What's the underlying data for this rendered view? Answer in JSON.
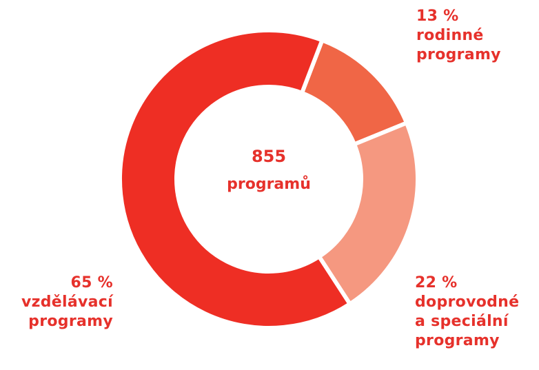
{
  "chart_data": {
    "type": "pie",
    "style": "donut",
    "center_value": "855",
    "center_label": "programů",
    "colors": {
      "vzdelavaci": "#ee2e24",
      "rodinne": "#f06646",
      "doprovodne": "#f59880",
      "label_text": "#e6312b"
    },
    "slices": [
      {
        "key": "vzdelavaci",
        "value": 65,
        "percent_label": "65 %",
        "label_lines": [
          "vzdělávací",
          "programy"
        ],
        "color": "#ee2e24"
      },
      {
        "key": "rodinne",
        "value": 13,
        "percent_label": "13 %",
        "label_lines": [
          "rodinné",
          "programy"
        ],
        "color": "#f06646"
      },
      {
        "key": "doprovodne",
        "value": 22,
        "percent_label": "22 %",
        "label_lines": [
          "doprovodné",
          "a speciální",
          "programy"
        ],
        "color": "#f59880"
      }
    ]
  }
}
